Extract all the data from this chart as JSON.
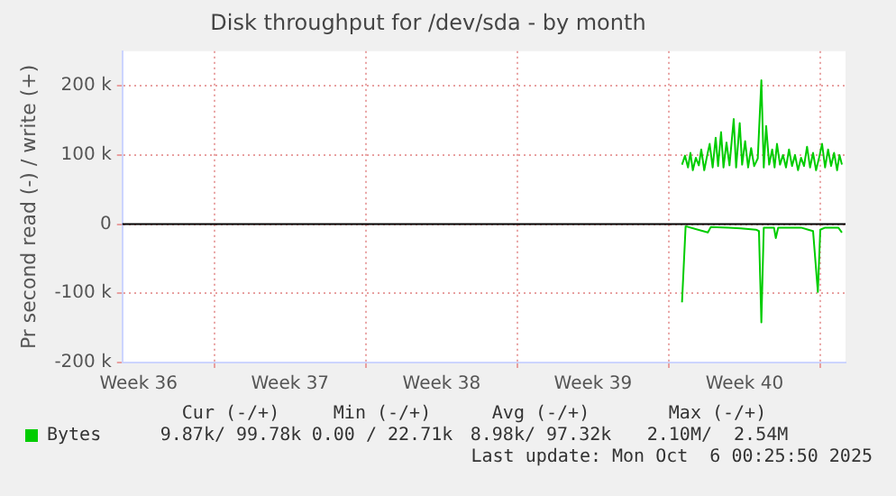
{
  "chart_data": {
    "type": "line",
    "title": "Disk throughput for /dev/sda - by month",
    "ylabel": "Pr second read (-) / write (+)",
    "xlim": [
      "2025-09-03T18:00",
      "2025-10-07T04:00"
    ],
    "xticks": [
      {
        "value": "2025-09-04T12:00",
        "label": "Week 36"
      },
      {
        "value": "2025-09-08",
        "label": null
      },
      {
        "value": "2025-09-11T12:00",
        "label": "Week 37"
      },
      {
        "value": "2025-09-15",
        "label": null
      },
      {
        "value": "2025-09-18T12:00",
        "label": "Week 38"
      },
      {
        "value": "2025-09-22",
        "label": null
      },
      {
        "value": "2025-09-25T12:00",
        "label": "Week 39"
      },
      {
        "value": "2025-09-29",
        "label": null
      },
      {
        "value": "2025-10-02T12:00",
        "label": "Week 40"
      },
      {
        "value": "2025-10-06",
        "label": null
      }
    ],
    "ylim": [
      -200000,
      250000
    ],
    "yticks": [
      {
        "value": -200000,
        "label": "-200 k"
      },
      {
        "value": -100000,
        "label": "-100 k"
      },
      0,
      {
        "value": 100000,
        "label": "100 k"
      },
      {
        "value": 200000,
        "label": "200 k"
      }
    ],
    "grid": true,
    "legend": "bottom",
    "marker": "none",
    "line_style": "solid",
    "ref_lines": [
      {
        "axis": "y",
        "value": 0,
        "color": "#000000"
      }
    ],
    "series": [
      {
        "name": "Bytes",
        "color": "#00cc00",
        "x": [
          "2025-09-29T14:40",
          "2025-09-29T18:00",
          "2025-09-29T21:20",
          "2025-09-30T00:00",
          "2025-09-30T02:40",
          "2025-09-30T06:00",
          "2025-09-30T09:20",
          "2025-09-30T12:00",
          "2025-09-30T15:20",
          "2025-09-30T18:40",
          "2025-09-30T21:20",
          "2025-10-01T00:40",
          "2025-10-01T04:00",
          "2025-10-01T06:40",
          "2025-10-01T10:00",
          "2025-10-01T12:40",
          "2025-10-01T16:00",
          "2025-10-01T19:20",
          "2025-10-02T00:00",
          "2025-10-02T02:40",
          "2025-10-02T06:40",
          "2025-10-02T09:20",
          "2025-10-02T12:40",
          "2025-10-02T16:00",
          "2025-10-02T19:20",
          "2025-10-02T22:40",
          "2025-10-03T02:40",
          "2025-10-03T06:40",
          "2025-10-03T09:20",
          "2025-10-03T12:00",
          "2025-10-03T15:20",
          "2025-10-03T18:40",
          "2025-10-03T21:20",
          "2025-10-04T00:00",
          "2025-10-04T03:20",
          "2025-10-04T06:40",
          "2025-10-04T10:00",
          "2025-10-04T13:20",
          "2025-10-04T16:40",
          "2025-10-04T20:00",
          "2025-10-04T23:20",
          "2025-10-05T02:40",
          "2025-10-05T06:00",
          "2025-10-05T09:20",
          "2025-10-05T12:40",
          "2025-10-05T16:00",
          "2025-10-05T19:20",
          "2025-10-05T22:40",
          "2025-10-06T02:00",
          "2025-10-06T05:20",
          "2025-10-06T08:40",
          "2025-10-06T12:00",
          "2025-10-06T15:20",
          "2025-10-06T18:40",
          "2025-10-06T21:20",
          "2025-10-07T00:00"
        ],
        "values": [
          86000,
          99000,
          82000,
          103000,
          78000,
          96000,
          85000,
          108000,
          78000,
          100000,
          116000,
          82000,
          125000,
          84000,
          133000,
          82000,
          118000,
          85000,
          152000,
          82000,
          146000,
          86000,
          120000,
          82000,
          110000,
          84000,
          95000,
          208000,
          82000,
          142000,
          86000,
          108000,
          82000,
          116000,
          86000,
          100000,
          82000,
          108000,
          84000,
          100000,
          78000,
          96000,
          84000,
          112000,
          82000,
          103000,
          78000,
          96000,
          116000,
          82000,
          108000,
          84000,
          103000,
          78000,
          100000,
          86000
        ]
      },
      {
        "color": "#00cc00",
        "x": [
          "2025-09-29T14:40",
          "2025-09-29T18:40",
          "2025-09-30T19:20",
          "2025-09-30T22:40",
          "2025-10-01T18:40",
          "2025-10-02T08:00",
          "2025-10-03T00:40",
          "2025-10-03T04:00",
          "2025-10-03T06:40",
          "2025-10-03T09:20",
          "2025-10-03T20:40",
          "2025-10-03T22:40",
          "2025-10-04T01:20",
          "2025-10-05T02:40",
          "2025-10-05T16:00",
          "2025-10-05T21:20",
          "2025-10-06T00:00",
          "2025-10-06T05:20",
          "2025-10-06T20:00",
          "2025-10-07T00:00"
        ],
        "values": [
          -113000,
          -3000,
          -12000,
          -4000,
          -5000,
          -6000,
          -8000,
          -10000,
          -142000,
          -5000,
          -5000,
          -20000,
          -5000,
          -5000,
          -10000,
          -98000,
          -8000,
          -5000,
          -5000,
          -12000
        ]
      }
    ],
    "annotations": [
      "Cur (-/+)",
      "Min (-/+)",
      "Avg (-/+)",
      "Max (-/+)",
      "9.87k/ 99.78k",
      "0.00 / 22.71k",
      "8.98k/ 97.32k",
      "2.10M/  2.54M",
      "Last update: Mon Oct  6 00:25:50 2025"
    ]
  }
}
